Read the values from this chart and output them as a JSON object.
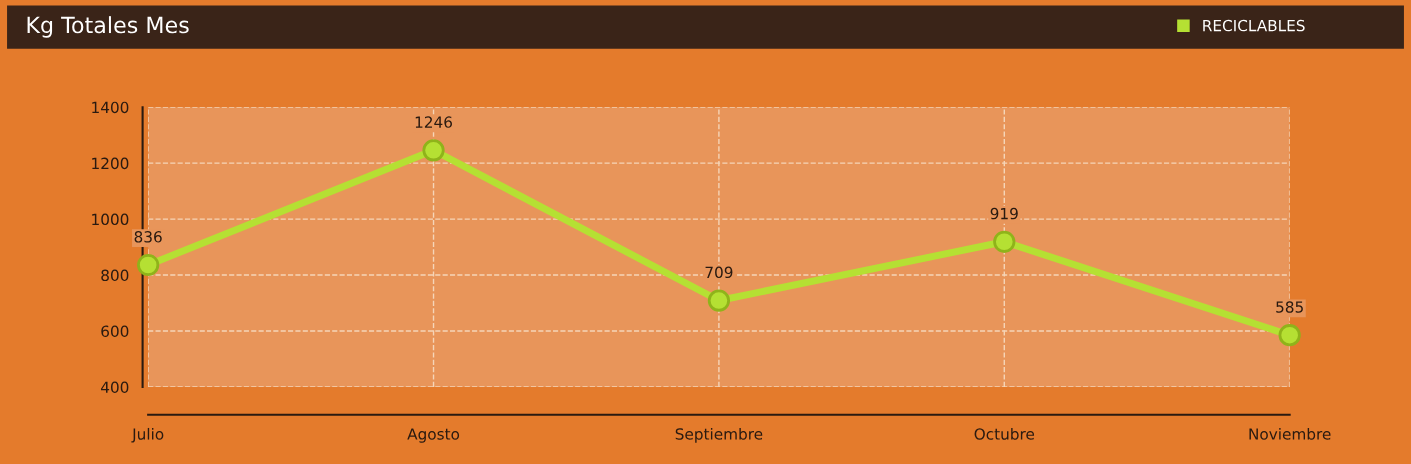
{
  "chart_data": {
    "type": "line",
    "title": "Kg Totales Mes",
    "categories": [
      "Julio",
      "Agosto",
      "Septiembre",
      "Octubre",
      "Noviembre"
    ],
    "series": [
      {
        "name": "RECICLABLES",
        "color": "#b5e033",
        "values": [
          836,
          1246,
          709,
          919,
          585
        ]
      }
    ],
    "ylim": [
      400,
      1400
    ],
    "yticks": [
      400,
      600,
      800,
      1000,
      1200,
      1400
    ],
    "grid": true,
    "legend": "top right",
    "marker": "circle",
    "line_style": "solid",
    "data_labels": true
  }
}
